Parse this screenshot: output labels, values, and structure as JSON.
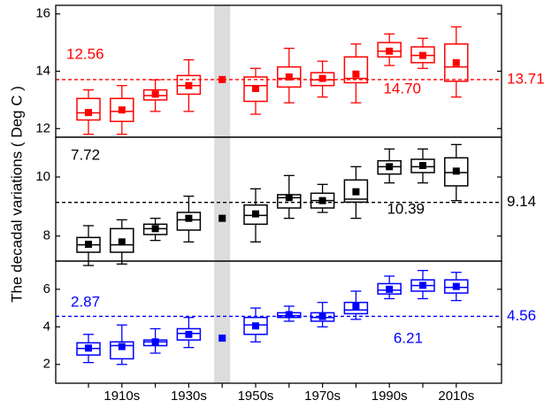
{
  "chart_data": [
    {
      "type": "box",
      "color": "#ff0000",
      "y_label": "The decadal variations ( Deg C )",
      "ylim": [
        11.7,
        16.3
      ],
      "yticks": [
        12,
        14,
        16
      ],
      "highlight_index": 4,
      "mean_line": 13.71,
      "annotations": [
        "12.56",
        "14.70"
      ],
      "min": [
        11.8,
        11.8,
        12.6,
        12.6,
        null,
        12.5,
        12.9,
        13.1,
        12.9,
        14.2,
        14.1,
        13.1
      ],
      "q1": [
        12.3,
        12.25,
        13.0,
        13.2,
        null,
        12.95,
        13.45,
        13.5,
        13.6,
        14.5,
        14.3,
        13.65
      ],
      "median": [
        12.55,
        12.6,
        13.15,
        13.5,
        null,
        13.5,
        13.75,
        13.7,
        13.75,
        14.7,
        14.55,
        14.15
      ],
      "q3": [
        13.05,
        13.05,
        13.35,
        13.85,
        null,
        13.8,
        14.15,
        13.95,
        14.5,
        15.0,
        14.85,
        14.95
      ],
      "max": [
        13.35,
        13.5,
        13.7,
        14.4,
        null,
        14.1,
        14.8,
        14.35,
        14.95,
        15.3,
        15.15,
        15.55
      ],
      "mean": [
        12.56,
        12.65,
        13.2,
        13.5,
        13.71,
        13.4,
        13.8,
        13.75,
        13.9,
        14.7,
        14.55,
        14.3
      ]
    },
    {
      "type": "box",
      "color": "#000000",
      "ylim": [
        7.15,
        11.35
      ],
      "yticks": [
        8,
        10
      ],
      "highlight_index": 4,
      "mean_line": 9.14,
      "annotations": [
        "7.72",
        "10.39"
      ],
      "min": [
        7.0,
        7.05,
        7.85,
        7.8,
        null,
        7.8,
        8.6,
        8.8,
        8.6,
        9.8,
        9.8,
        9.2
      ],
      "q1": [
        7.45,
        7.45,
        8.05,
        8.2,
        null,
        8.4,
        8.95,
        8.95,
        9.15,
        10.1,
        10.15,
        9.7
      ],
      "median": [
        7.7,
        7.7,
        8.25,
        8.55,
        null,
        8.7,
        9.3,
        9.2,
        9.25,
        10.35,
        10.35,
        10.15
      ],
      "q3": [
        7.95,
        8.25,
        8.4,
        8.8,
        null,
        9.05,
        9.4,
        9.45,
        9.9,
        10.55,
        10.6,
        10.65
      ],
      "max": [
        8.35,
        8.55,
        8.6,
        9.35,
        null,
        9.6,
        10.05,
        9.75,
        10.35,
        10.95,
        10.95,
        11.1
      ],
      "mean": [
        7.72,
        7.8,
        8.25,
        8.6,
        8.6,
        8.75,
        9.3,
        9.2,
        9.5,
        10.35,
        10.39,
        10.2
      ]
    },
    {
      "type": "box",
      "color": "#0000ff",
      "ylim": [
        1.0,
        7.5
      ],
      "yticks": [
        2,
        4,
        6
      ],
      "highlight_index": 4,
      "mean_line": 4.56,
      "annotations": [
        "2.87",
        "6.21"
      ],
      "categories": [
        null,
        "1910s",
        null,
        "1930s",
        null,
        "1950s",
        null,
        "1970s",
        null,
        "1990s",
        null,
        "2010s"
      ],
      "min": [
        2.1,
        2.0,
        2.6,
        2.9,
        null,
        3.2,
        4.3,
        4.0,
        4.4,
        5.5,
        5.5,
        5.4
      ],
      "q1": [
        2.5,
        2.3,
        3.0,
        3.3,
        null,
        3.6,
        4.5,
        4.3,
        4.7,
        5.75,
        5.9,
        5.8
      ],
      "median": [
        2.85,
        3.0,
        3.2,
        3.65,
        null,
        4.1,
        4.6,
        4.5,
        4.9,
        5.95,
        6.2,
        6.1
      ],
      "q3": [
        3.15,
        3.2,
        3.3,
        3.9,
        null,
        4.5,
        4.75,
        4.75,
        5.3,
        6.3,
        6.5,
        6.5
      ],
      "max": [
        3.6,
        4.1,
        3.9,
        4.5,
        null,
        5.0,
        5.1,
        5.3,
        5.9,
        6.7,
        7.0,
        6.9
      ],
      "mean": [
        2.87,
        2.95,
        3.2,
        3.6,
        3.4,
        4.05,
        4.65,
        4.55,
        5.1,
        6.0,
        6.21,
        6.15
      ]
    }
  ]
}
